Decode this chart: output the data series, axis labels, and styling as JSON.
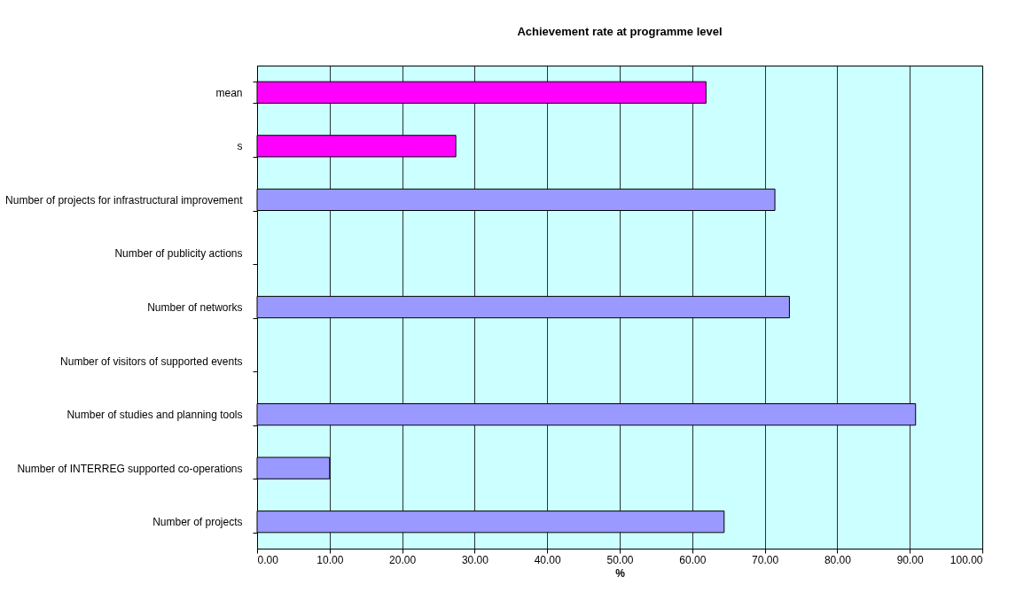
{
  "chart_data": {
    "type": "bar",
    "orientation": "horizontal",
    "title": "Achievement rate at programme level",
    "xlabel": "%",
    "categories": [
      "mean",
      "s",
      "Number of projects for infrastructural improvement",
      "Number of publicity actions",
      "Number of networks",
      "Number of visitors of supported events",
      "Number of studies and planning tools",
      "Number of INTERREG supported co-operations",
      "Number of projects"
    ],
    "values": [
      61.9,
      27.4,
      71.4,
      null,
      73.4,
      null,
      90.8,
      10.0,
      64.4
    ],
    "colors": [
      "#ff00ff",
      "#ff00ff",
      "#9999ff",
      "#9999ff",
      "#9999ff",
      "#9999ff",
      "#9999ff",
      "#9999ff",
      "#9999ff"
    ],
    "xlim": [
      0,
      100
    ],
    "xticks": [
      {
        "value": 0,
        "label": "0.00"
      },
      {
        "value": 10,
        "label": "10.00"
      },
      {
        "value": 20,
        "label": "20.00"
      },
      {
        "value": 30,
        "label": "30.00"
      },
      {
        "value": 40,
        "label": "40.00"
      },
      {
        "value": 50,
        "label": "50.00"
      },
      {
        "value": 60,
        "label": "60.00"
      },
      {
        "value": 70,
        "label": "70.00"
      },
      {
        "value": 80,
        "label": "80.00"
      },
      {
        "value": 90,
        "label": "90.00"
      },
      {
        "value": 100,
        "label": "100.00"
      }
    ],
    "grid": "x",
    "legend": false
  }
}
